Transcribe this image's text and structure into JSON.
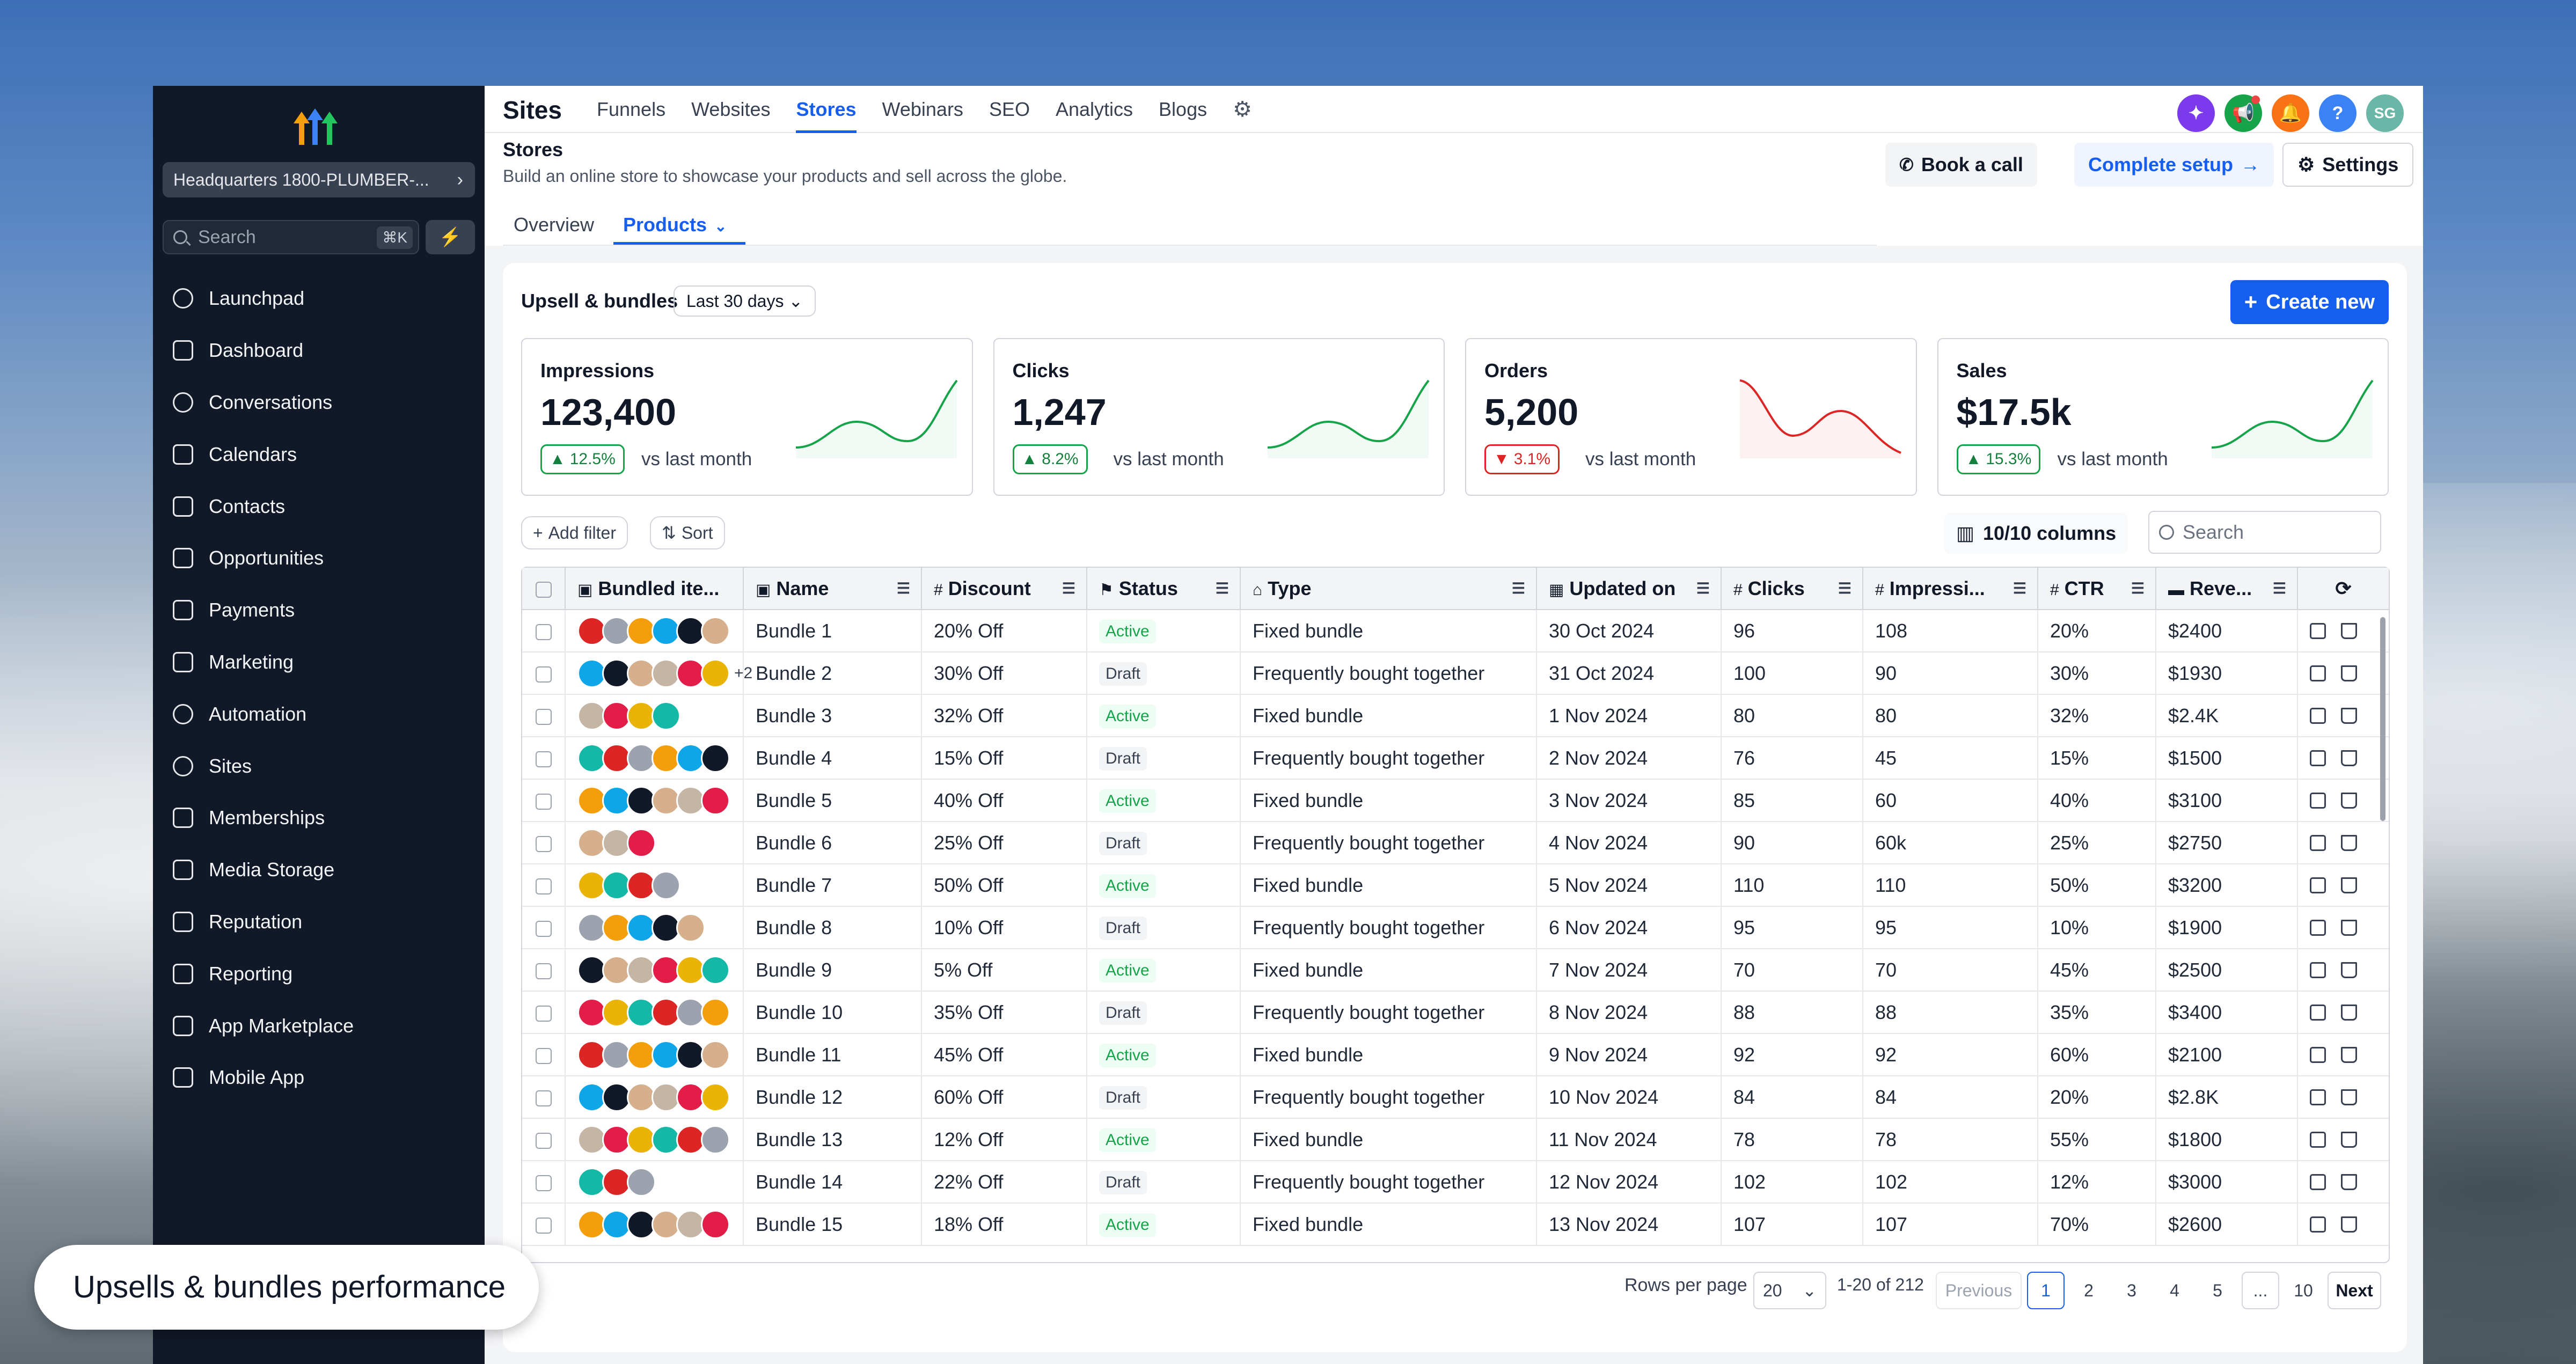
{
  "sidebar": {
    "location": "Headquarters 1800-PLUMBER-...",
    "search_placeholder": "Search",
    "search_shortcut": "⌘K",
    "items": [
      {
        "label": "Launchpad",
        "icon": "launchpad-icon"
      },
      {
        "label": "Dashboard",
        "icon": "dashboard-icon"
      },
      {
        "label": "Conversations",
        "icon": "chat-icon"
      },
      {
        "label": "Calendars",
        "icon": "calendar-icon"
      },
      {
        "label": "Contacts",
        "icon": "contacts-icon"
      },
      {
        "label": "Opportunities",
        "icon": "opportunities-icon"
      },
      {
        "label": "Payments",
        "icon": "payments-icon"
      },
      {
        "label": "Marketing",
        "icon": "send-icon"
      },
      {
        "label": "Automation",
        "icon": "automation-icon"
      },
      {
        "label": "Sites",
        "icon": "globe-icon"
      },
      {
        "label": "Memberships",
        "icon": "memberships-icon"
      },
      {
        "label": "Media Storage",
        "icon": "image-icon"
      },
      {
        "label": "Reputation",
        "icon": "star-icon"
      },
      {
        "label": "Reporting",
        "icon": "chart-line-icon"
      },
      {
        "label": "App Marketplace",
        "icon": "grid-icon"
      },
      {
        "label": "Mobile App",
        "icon": "phone-icon"
      }
    ]
  },
  "topnav": {
    "title": "Sites",
    "tabs": [
      "Funnels",
      "Websites",
      "Stores",
      "Webinars",
      "SEO",
      "Analytics",
      "Blogs"
    ],
    "active_tab": "Stores",
    "avatar_initials": "SG",
    "help": "?"
  },
  "header": {
    "title": "Stores",
    "subtitle": "Build an online store to showcase your products and sell across the globe.",
    "book_call": "Book a call",
    "complete_setup": "Complete setup",
    "settings": "Settings",
    "subtabs": [
      "Overview",
      "Products"
    ]
  },
  "card": {
    "title": "Upsell & bundles",
    "range": "Last 30 days",
    "create": "Create new",
    "vs_text": "vs last month"
  },
  "stats": [
    {
      "label": "Impressions",
      "value": "123,400",
      "delta": "12.5%",
      "trend": "up",
      "color": "#16a34a"
    },
    {
      "label": "Clicks",
      "value": "1,247",
      "delta": "8.2%",
      "trend": "up",
      "color": "#16a34a"
    },
    {
      "label": "Orders",
      "value": "5,200",
      "delta": "3.1%",
      "trend": "down",
      "color": "#dc2626"
    },
    {
      "label": "Sales",
      "value": "$17.5k",
      "delta": "15.3%",
      "trend": "up",
      "color": "#16a34a"
    }
  ],
  "toolbar": {
    "add_filter": "Add filter",
    "sort": "Sort",
    "columns": "10/10 columns",
    "search_placeholder": "Search"
  },
  "table": {
    "columns": [
      "Bundled ite...",
      "Name",
      "Discount",
      "Status",
      "Type",
      "Updated on",
      "Clicks",
      "Impressi...",
      "CTR",
      "Reve..."
    ],
    "rows": [
      {
        "items": 6,
        "extra": "",
        "name": "Bundle 1",
        "discount": "20% Off",
        "status": "Active",
        "type": "Fixed bundle",
        "updated": "30 Oct 2024",
        "clicks": "96",
        "impressions": "108",
        "ctr": "20%",
        "revenue": "$2400"
      },
      {
        "items": 6,
        "extra": "+2",
        "name": "Bundle 2",
        "discount": "30% Off",
        "status": "Draft",
        "type": "Frequently bought together",
        "updated": "31 Oct 2024",
        "clicks": "100",
        "impressions": "90",
        "ctr": "30%",
        "revenue": "$1930"
      },
      {
        "items": 4,
        "extra": "",
        "name": "Bundle 3",
        "discount": "32% Off",
        "status": "Active",
        "type": "Fixed bundle",
        "updated": "1 Nov 2024",
        "clicks": "80",
        "impressions": "80",
        "ctr": "32%",
        "revenue": "$2.4K"
      },
      {
        "items": 6,
        "extra": "",
        "name": "Bundle 4",
        "discount": "15% Off",
        "status": "Draft",
        "type": "Frequently bought together",
        "updated": "2 Nov 2024",
        "clicks": "76",
        "impressions": "45",
        "ctr": "15%",
        "revenue": "$1500"
      },
      {
        "items": 6,
        "extra": "",
        "name": "Bundle 5",
        "discount": "40% Off",
        "status": "Active",
        "type": "Fixed bundle",
        "updated": "3 Nov 2024",
        "clicks": "85",
        "impressions": "60",
        "ctr": "40%",
        "revenue": "$3100"
      },
      {
        "items": 3,
        "extra": "",
        "name": "Bundle 6",
        "discount": "25% Off",
        "status": "Draft",
        "type": "Frequently bought together",
        "updated": "4 Nov 2024",
        "clicks": "90",
        "impressions": "60k",
        "ctr": "25%",
        "revenue": "$2750"
      },
      {
        "items": 4,
        "extra": "",
        "name": "Bundle 7",
        "discount": "50% Off",
        "status": "Active",
        "type": "Fixed bundle",
        "updated": "5 Nov 2024",
        "clicks": "110",
        "impressions": "110",
        "ctr": "50%",
        "revenue": "$3200"
      },
      {
        "items": 5,
        "extra": "",
        "name": "Bundle 8",
        "discount": "10% Off",
        "status": "Draft",
        "type": "Frequently bought together",
        "updated": "6 Nov 2024",
        "clicks": "95",
        "impressions": "95",
        "ctr": "10%",
        "revenue": "$1900"
      },
      {
        "items": 6,
        "extra": "",
        "name": "Bundle 9",
        "discount": "5% Off",
        "status": "Active",
        "type": "Fixed bundle",
        "updated": "7 Nov 2024",
        "clicks": "70",
        "impressions": "70",
        "ctr": "45%",
        "revenue": "$2500"
      },
      {
        "items": 6,
        "extra": "",
        "name": "Bundle 10",
        "discount": "35% Off",
        "status": "Draft",
        "type": "Frequently bought together",
        "updated": "8 Nov 2024",
        "clicks": "88",
        "impressions": "88",
        "ctr": "35%",
        "revenue": "$3400"
      },
      {
        "items": 6,
        "extra": "",
        "name": "Bundle 11",
        "discount": "45% Off",
        "status": "Active",
        "type": "Fixed bundle",
        "updated": "9 Nov 2024",
        "clicks": "92",
        "impressions": "92",
        "ctr": "60%",
        "revenue": "$2100"
      },
      {
        "items": 6,
        "extra": "",
        "name": "Bundle 12",
        "discount": "60% Off",
        "status": "Draft",
        "type": "Frequently bought together",
        "updated": "10 Nov 2024",
        "clicks": "84",
        "impressions": "84",
        "ctr": "20%",
        "revenue": "$2.8K"
      },
      {
        "items": 6,
        "extra": "",
        "name": "Bundle 13",
        "discount": "12% Off",
        "status": "Active",
        "type": "Fixed bundle",
        "updated": "11 Nov 2024",
        "clicks": "78",
        "impressions": "78",
        "ctr": "55%",
        "revenue": "$1800"
      },
      {
        "items": 3,
        "extra": "",
        "name": "Bundle 14",
        "discount": "22% Off",
        "status": "Draft",
        "type": "Frequently bought together",
        "updated": "12 Nov 2024",
        "clicks": "102",
        "impressions": "102",
        "ctr": "12%",
        "revenue": "$3000"
      },
      {
        "items": 6,
        "extra": "",
        "name": "Bundle 15",
        "discount": "18% Off",
        "status": "Active",
        "type": "Fixed bundle",
        "updated": "13 Nov 2024",
        "clicks": "107",
        "impressions": "107",
        "ctr": "70%",
        "revenue": "$2600"
      }
    ]
  },
  "pagination": {
    "rows_per_page_label": "Rows per page",
    "rows_per_page": "20",
    "range": "1-20 of 212",
    "previous": "Previous",
    "pages": [
      "1",
      "2",
      "3",
      "4",
      "5",
      "...",
      "10"
    ],
    "current": "1",
    "next": "Next"
  },
  "toast": {
    "text": "Upsells & bundles performance"
  },
  "colors": {
    "accent": "#155eef",
    "sidebar": "#111827",
    "success": "#16a34a",
    "danger": "#dc2626"
  }
}
